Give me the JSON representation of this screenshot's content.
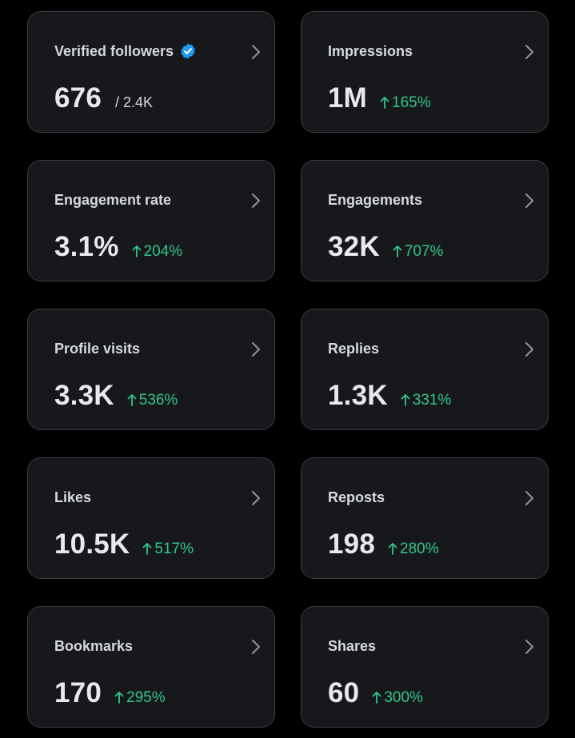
{
  "cards": [
    {
      "title": "Verified followers",
      "value": "676",
      "suffix": "/ 2.4K",
      "change": "",
      "verified": true
    },
    {
      "title": "Impressions",
      "value": "1M",
      "suffix": "",
      "change": "165%"
    },
    {
      "title": "Engagement rate",
      "value": "3.1%",
      "suffix": "",
      "change": "204%"
    },
    {
      "title": "Engagements",
      "value": "32K",
      "suffix": "",
      "change": "707%"
    },
    {
      "title": "Profile visits",
      "value": "3.3K",
      "suffix": "",
      "change": "536%"
    },
    {
      "title": "Replies",
      "value": "1.3K",
      "suffix": "",
      "change": "331%"
    },
    {
      "title": "Likes",
      "value": "10.5K",
      "suffix": "",
      "change": "517%"
    },
    {
      "title": "Reposts",
      "value": "198",
      "suffix": "",
      "change": "280%"
    },
    {
      "title": "Bookmarks",
      "value": "170",
      "suffix": "",
      "change": "295%"
    },
    {
      "title": "Shares",
      "value": "60",
      "suffix": "",
      "change": "300%"
    }
  ],
  "colors": {
    "background": "#000000",
    "card_background": "#17181c",
    "card_border": "#3a3d42",
    "positive_change": "#2fc788",
    "verified_badge": "#1d9bf0"
  },
  "icons": {
    "verified": "verified-badge-icon",
    "chevron": "chevron-right-icon",
    "change_arrow": "arrow-up-icon"
  }
}
